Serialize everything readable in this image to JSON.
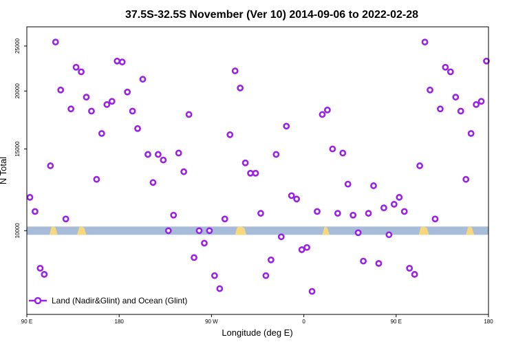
{
  "chart_data": {
    "type": "scatter",
    "title": "37.5S-32.5S November (Ver 10)   2014-09-06 to 2022-02-28",
    "xlabel": "Longitude (deg E)",
    "ylabel": "N Total",
    "x_ticks": [
      {
        "value": 90,
        "label": "90 E"
      },
      {
        "value": 180,
        "label": "180"
      },
      {
        "value": 270,
        "label": "90 W"
      },
      {
        "value": 360,
        "label": "0"
      },
      {
        "value": 450,
        "label": "90 E"
      },
      {
        "value": 540,
        "label": "180"
      }
    ],
    "y_ticks": [
      {
        "value": 10000,
        "label": "10000"
      },
      {
        "value": 15000,
        "label": "15000"
      },
      {
        "value": 20000,
        "label": "20000"
      },
      {
        "value": 25000,
        "label": "25000"
      }
    ],
    "y_scale": "log",
    "xlim": [
      90,
      540
    ],
    "ylim": [
      6600,
      27500
    ],
    "colors": {
      "series": "#9a22e6",
      "ocean": "#a6bcd8",
      "land": "#f7d87c"
    },
    "legend": {
      "position": "bottom-left",
      "label": "Land (Nadir&Glint) and Ocean (Glint)"
    },
    "series": [
      {
        "name": "Land (Nadir&Glint) and Ocean (Glint)",
        "points": [
          [
            93,
            11800
          ],
          [
            98,
            11000
          ],
          [
            103,
            8300
          ],
          [
            107,
            8050
          ],
          [
            113,
            13800
          ],
          [
            118,
            25500
          ],
          [
            123,
            20100
          ],
          [
            128,
            10600
          ],
          [
            133,
            18300
          ],
          [
            138,
            22500
          ],
          [
            143,
            22000
          ],
          [
            148,
            19400
          ],
          [
            153,
            18100
          ],
          [
            158,
            12900
          ],
          [
            163,
            16200
          ],
          [
            168,
            18700
          ],
          [
            173,
            19000
          ],
          [
            178,
            23200
          ],
          [
            183,
            23100
          ],
          [
            188,
            19900
          ],
          [
            193,
            18100
          ],
          [
            198,
            16600
          ],
          [
            203,
            21200
          ],
          [
            208,
            14600
          ],
          [
            213,
            12700
          ],
          [
            218,
            14600
          ],
          [
            223,
            14200
          ],
          [
            228,
            10000
          ],
          [
            233,
            10800
          ],
          [
            238,
            14700
          ],
          [
            243,
            13400
          ],
          [
            248,
            17800
          ],
          [
            253,
            8750
          ],
          [
            258,
            10000
          ],
          [
            263,
            9400
          ],
          [
            268,
            10000
          ],
          [
            273,
            8000
          ],
          [
            278,
            7500
          ],
          [
            283,
            10600
          ],
          [
            288,
            16100
          ],
          [
            293,
            22100
          ],
          [
            298,
            20300
          ],
          [
            303,
            14000
          ],
          [
            308,
            13300
          ],
          [
            313,
            13300
          ],
          [
            318,
            10900
          ],
          [
            323,
            8000
          ],
          [
            328,
            8650
          ],
          [
            333,
            14600
          ],
          [
            338,
            9700
          ],
          [
            343,
            16800
          ],
          [
            348,
            11900
          ],
          [
            353,
            11700
          ],
          [
            358,
            9100
          ],
          [
            363,
            9200
          ],
          [
            368,
            7400
          ],
          [
            373,
            11000
          ],
          [
            378,
            17800
          ],
          [
            383,
            18200
          ],
          [
            388,
            15000
          ],
          [
            393,
            10900
          ],
          [
            398,
            14700
          ],
          [
            403,
            12600
          ],
          [
            408,
            10800
          ],
          [
            413,
            9900
          ],
          [
            418,
            8600
          ],
          [
            423,
            10900
          ],
          [
            428,
            12500
          ],
          [
            433,
            8500
          ],
          [
            438,
            11200
          ],
          [
            443,
            9800
          ],
          [
            448,
            11400
          ],
          [
            453,
            11800
          ],
          [
            458,
            11000
          ],
          [
            463,
            8300
          ],
          [
            468,
            8050
          ],
          [
            473,
            13800
          ],
          [
            478,
            25500
          ],
          [
            483,
            20100
          ],
          [
            488,
            10600
          ],
          [
            493,
            18300
          ],
          [
            498,
            22500
          ],
          [
            503,
            22000
          ],
          [
            508,
            19400
          ],
          [
            513,
            18100
          ],
          [
            518,
            12900
          ],
          [
            523,
            16200
          ],
          [
            528,
            18700
          ],
          [
            533,
            19000
          ],
          [
            538,
            23200
          ]
        ]
      }
    ]
  }
}
